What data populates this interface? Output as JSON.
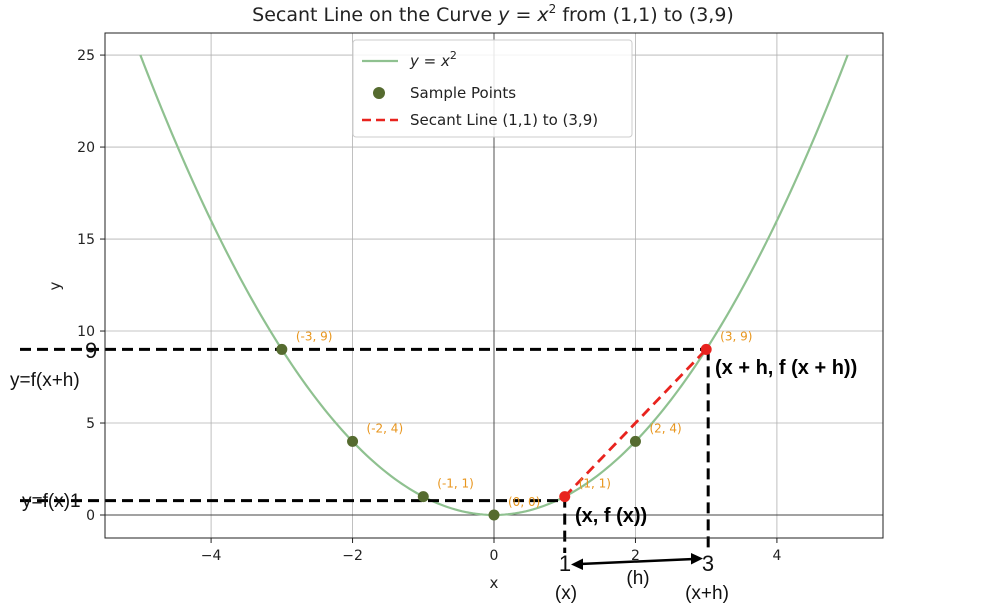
{
  "chart_data": {
    "type": "line",
    "title_prefix": "Secant Line on the Curve ",
    "title_math": "y = x",
    "title_sup": "2",
    "title_suffix": " from (1,1) to (3,9)",
    "xlabel": "x",
    "ylabel": "y",
    "xlim": [
      -5.5,
      5.5
    ],
    "ylim": [
      -1.25,
      26.2
    ],
    "xticks": [
      -4,
      -2,
      0,
      2,
      4
    ],
    "xtick_labels": [
      "−4",
      "−2",
      "0",
      "2",
      "4"
    ],
    "yticks": [
      0,
      5,
      10,
      15,
      20,
      25
    ],
    "ytick_labels": [
      "0",
      "5",
      "10",
      "15",
      "20",
      "25"
    ],
    "grid": true,
    "legend_position": "top-center",
    "series": [
      {
        "name": "y = x^2",
        "legend_math": "y = x",
        "legend_sup": "2",
        "kind": "curve",
        "function": "x^2",
        "x_range": [
          -5,
          5
        ],
        "color": "#8fc190"
      },
      {
        "name": "Sample Points",
        "kind": "scatter",
        "color": "#556b2f",
        "points": [
          {
            "x": -3,
            "y": 9,
            "label": "(-3, 9)"
          },
          {
            "x": -2,
            "y": 4,
            "label": "(-2, 4)"
          },
          {
            "x": -1,
            "y": 1,
            "label": "(-1, 1)"
          },
          {
            "x": 0,
            "y": 0,
            "label": "(0, 0)"
          },
          {
            "x": 2,
            "y": 4,
            "label": "(2, 4)"
          }
        ]
      },
      {
        "name": "Secant Line (1,1) to (3,9)",
        "kind": "secant",
        "color": "#e8231e",
        "points": [
          {
            "x": 1,
            "y": 1,
            "label": "(1, 1)"
          },
          {
            "x": 3,
            "y": 9,
            "label": "(3, 9)"
          }
        ]
      }
    ],
    "annotations": {
      "y_fxh_value": "9",
      "y_fxh_label": "y=f(x+h)",
      "y_fx_label": "y=f(x)1",
      "point_a_label": "(x, f (x))",
      "point_b_label": "(x + h, f (x + h))",
      "x_a_value": "1",
      "x_a_label": "(x)",
      "x_b_value": "3",
      "x_b_label": "(x+h)",
      "h_label": "(h)"
    },
    "colors": {
      "curve": "#8fc190",
      "points": "#556b2f",
      "secant": "#e8231e",
      "point_labels": "#e8961e",
      "grid": "#b0b0b0"
    }
  }
}
